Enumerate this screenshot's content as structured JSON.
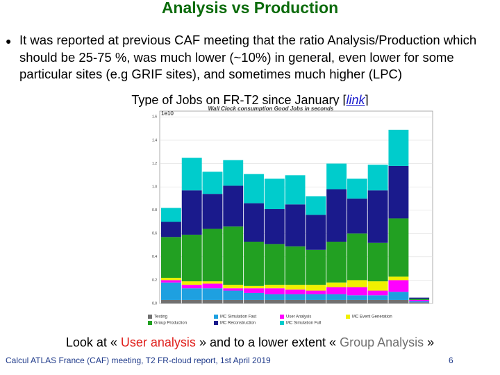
{
  "title": "Analysis vs Production",
  "bullet": "It was reported at previous CAF meeting that the ratio Analysis/Production which should be 25-75 %, was much lower (~10%) in general, even lower for some particular sites (e.g GRIF sites), and sometimes much higher (LPC)",
  "caption": {
    "text": "Type of Jobs on FR-T2 since January [",
    "link": "link",
    "end": "]"
  },
  "chart_data": {
    "type": "bar",
    "stacked": true,
    "title": "Wall Clock consumption Good Jobs in seconds",
    "multiplier": "1e10",
    "categories": [
      null,
      null,
      null,
      null,
      null,
      null,
      null,
      null,
      null,
      null,
      null,
      null,
      null
    ],
    "ylim": [
      0,
      1.65
    ],
    "yticks": [
      {
        "value": 0,
        "label": "0.0"
      },
      {
        "value": 0.2,
        "label": "0.2"
      },
      {
        "value": 0.4,
        "label": "0.4"
      },
      {
        "value": 0.6,
        "label": "0.6"
      },
      {
        "value": 0.8,
        "label": "0.8"
      },
      {
        "value": 1,
        "label": "1.0"
      },
      {
        "value": 1.2,
        "label": "1.2"
      },
      {
        "value": 1.4,
        "label": "1.4"
      },
      {
        "value": 1.6,
        "label": "1.6"
      }
    ],
    "series": [
      {
        "name": "Testing",
        "color": "#707070",
        "values": [
          0.03,
          0.03,
          0.03,
          0.03,
          0.03,
          0.03,
          0.03,
          0.03,
          0.03,
          0.03,
          0.03,
          0.03,
          0.01
        ]
      },
      {
        "name": "MC Simulation Fast",
        "color": "#1ea0e0",
        "values": [
          0.15,
          0.1,
          0.1,
          0.08,
          0.06,
          0.05,
          0.05,
          0.05,
          0.05,
          0.04,
          0.04,
          0.07,
          0.01
        ]
      },
      {
        "name": "User Analysis",
        "color": "#ff00ff",
        "values": [
          0.02,
          0.03,
          0.04,
          0.02,
          0.04,
          0.05,
          0.04,
          0.03,
          0.06,
          0.07,
          0.04,
          0.1,
          0.01
        ]
      },
      {
        "name": "MC Event Generation",
        "color": "#f0f000",
        "values": [
          0.02,
          0.03,
          0.02,
          0.03,
          0.02,
          0.03,
          0.04,
          0.05,
          0.04,
          0.06,
          0.08,
          0.03,
          0
        ]
      },
      {
        "name": "Group Production",
        "color": "#22a022",
        "values": [
          0.35,
          0.4,
          0.45,
          0.5,
          0.38,
          0.35,
          0.33,
          0.3,
          0.35,
          0.4,
          0.33,
          0.5,
          0.01
        ]
      },
      {
        "name": "MC Reconstruction",
        "color": "#1a1a8c",
        "values": [
          0.13,
          0.38,
          0.3,
          0.35,
          0.33,
          0.3,
          0.36,
          0.3,
          0.45,
          0.3,
          0.45,
          0.45,
          0.01
        ]
      },
      {
        "name": "MC Simulation Full",
        "color": "#00cccc",
        "values": [
          0.12,
          0.28,
          0.19,
          0.22,
          0.25,
          0.26,
          0.25,
          0.16,
          0.22,
          0.17,
          0.22,
          0.31,
          0
        ]
      }
    ],
    "grid": true
  },
  "conclusion": [
    "Look at « ",
    "User analysis",
    " » and to a lower extent « ",
    "Group Analysis",
    " »"
  ],
  "footer": {
    "text": "Calcul ATLAS France (CAF) meeting, T2 FR-cloud report, 1st April 2019",
    "page": "6"
  }
}
